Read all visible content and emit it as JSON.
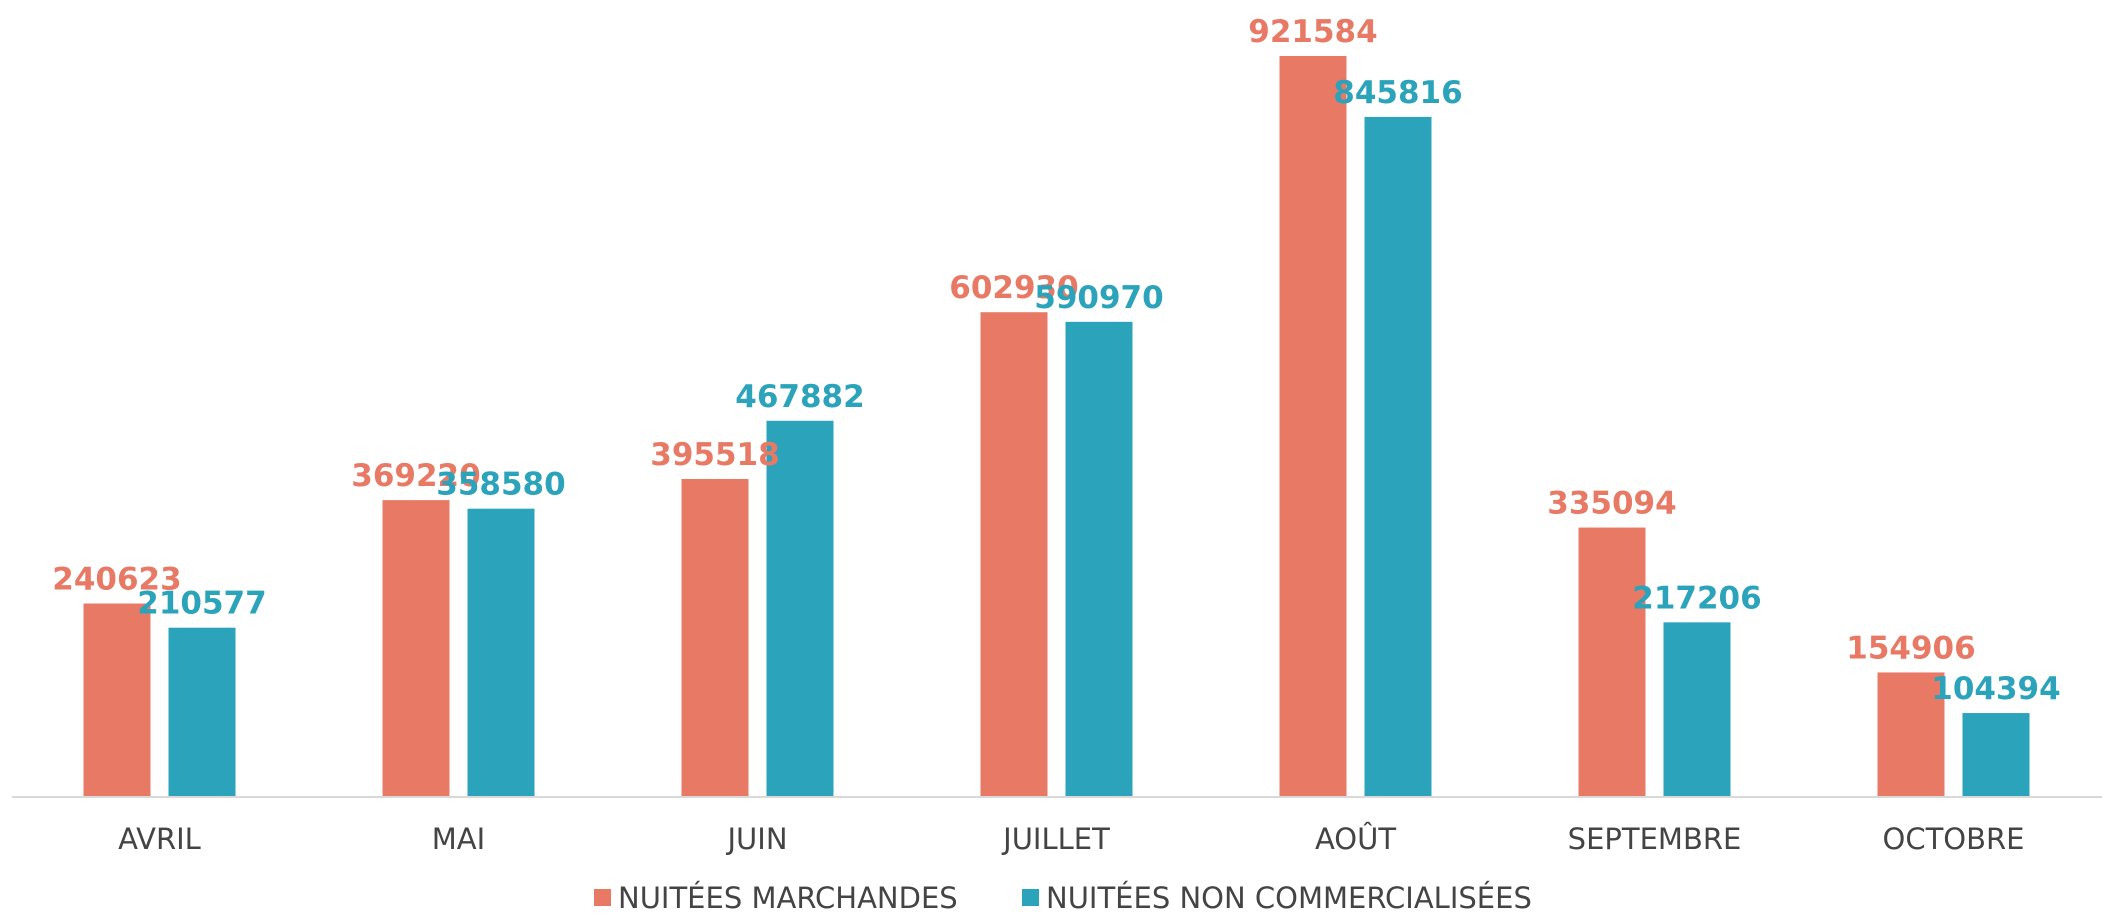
{
  "chart_data": {
    "type": "bar",
    "categories": [
      "AVRIL",
      "MAI",
      "JUIN",
      "JUILLET",
      "AOÛT",
      "SEPTEMBRE",
      "OCTOBRE"
    ],
    "series": [
      {
        "name": "NUITÉES MARCHANDES",
        "color": "#E87965",
        "values": [
          240623,
          369220,
          395518,
          602930,
          921584,
          335094,
          154906
        ]
      },
      {
        "name": "NUITÉES NON COMMERCIALISÉES",
        "color": "#2BA3BB",
        "values": [
          210577,
          358580,
          467882,
          590970,
          845816,
          217206,
          104394
        ]
      }
    ],
    "ylim": [
      0,
      921584
    ],
    "grid": false,
    "legend_position": "bottom",
    "data_labels": true
  }
}
